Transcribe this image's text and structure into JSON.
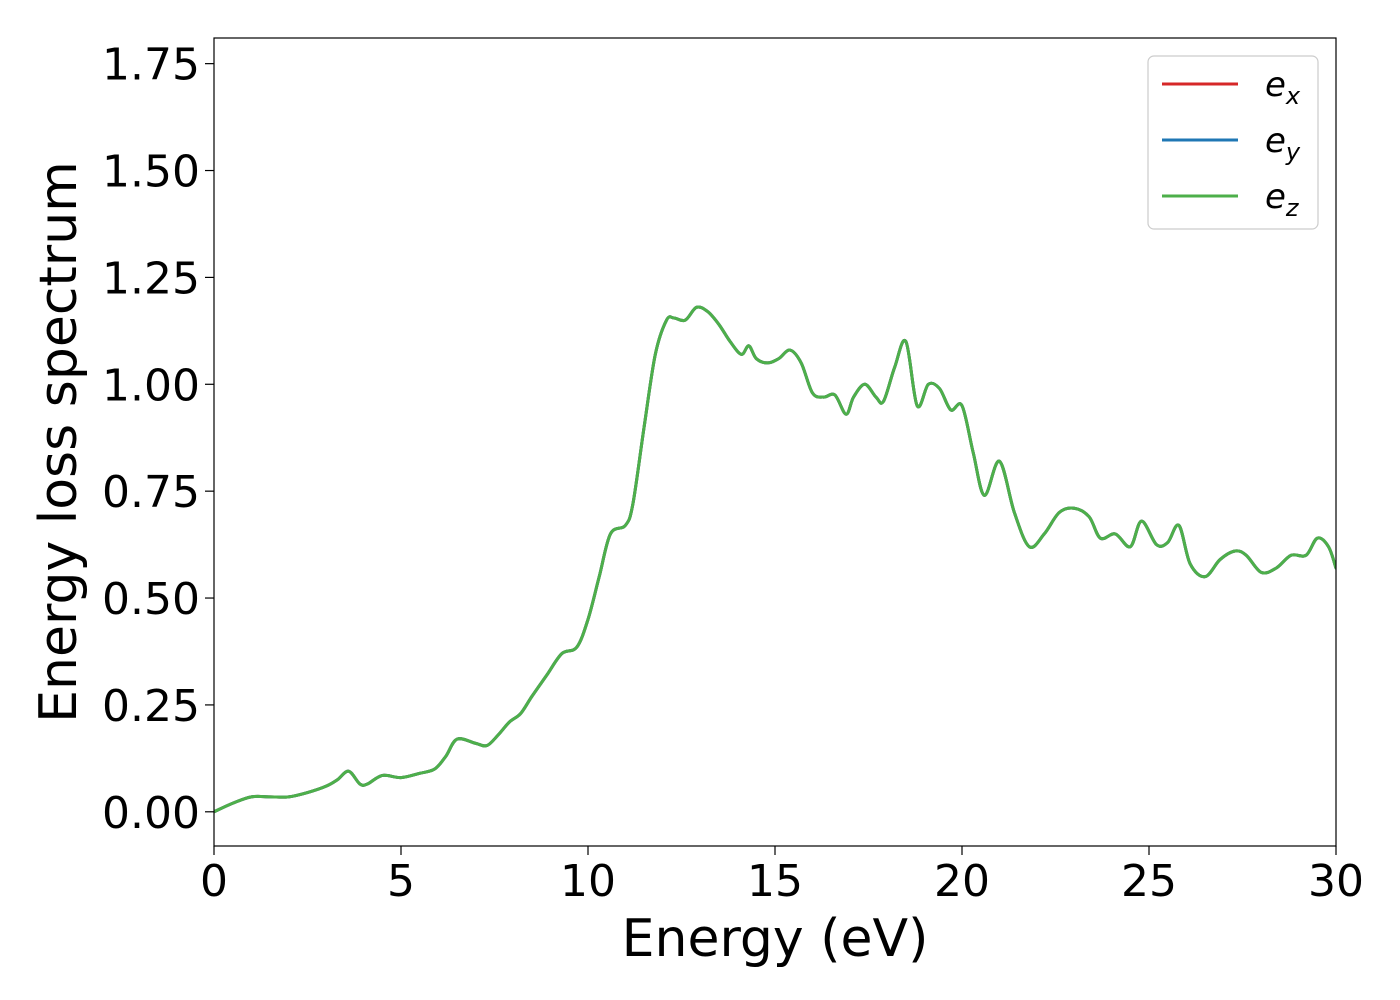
{
  "chart_data": {
    "type": "line",
    "title": "",
    "xlabel": "Energy (eV)",
    "ylabel": "Energy loss spectrum",
    "xlim": [
      0,
      30
    ],
    "ylim": [
      -0.08,
      1.81
    ],
    "xticks": [
      0,
      5,
      10,
      15,
      20,
      25,
      30
    ],
    "xtick_labels": [
      "0",
      "5",
      "10",
      "15",
      "20",
      "25",
      "30"
    ],
    "yticks": [
      0,
      0.25,
      0.5,
      0.75,
      1.0,
      1.25,
      1.5,
      1.75
    ],
    "ytick_labels": [
      "0.00",
      "0.25",
      "0.50",
      "0.75",
      "1.00",
      "1.25",
      "1.50",
      "1.75"
    ],
    "grid": false,
    "legend_position": "top-right",
    "series": [
      {
        "name": "e_x",
        "label_base": "e",
        "label_sub": "x",
        "color": "#d62728",
        "x": [
          0,
          0.5,
          1,
          1.5,
          2,
          2.5,
          3,
          3.3,
          3.6,
          3.9,
          4.1,
          4.5,
          5,
          5.5,
          5.9,
          6.2,
          6.5,
          7,
          7.3,
          7.6,
          7.9,
          8.2,
          8.5,
          8.9,
          9.3,
          9.7,
          10,
          10.3,
          10.6,
          11,
          11.2,
          11.5,
          11.8,
          12.1,
          12.3,
          12.6,
          12.9,
          13.2,
          13.5,
          13.8,
          14.1,
          14.3,
          14.5,
          14.8,
          15.1,
          15.4,
          15.7,
          16,
          16.3,
          16.6,
          16.9,
          17.1,
          17.4,
          17.7,
          17.9,
          18.2,
          18.5,
          18.8,
          19.1,
          19.4,
          19.7,
          20,
          20.3,
          20.6,
          21,
          21.4,
          21.8,
          22.2,
          22.6,
          23,
          23.4,
          23.7,
          24.1,
          24.5,
          24.8,
          25.2,
          25.5,
          25.8,
          26.1,
          26.5,
          26.9,
          27.3,
          27.6,
          28,
          28.4,
          28.8,
          29.2,
          29.5,
          29.8,
          30
        ],
        "y": [
          0.0,
          0.02,
          0.035,
          0.035,
          0.035,
          0.045,
          0.06,
          0.075,
          0.095,
          0.065,
          0.065,
          0.085,
          0.08,
          0.09,
          0.1,
          0.13,
          0.17,
          0.16,
          0.155,
          0.18,
          0.21,
          0.23,
          0.27,
          0.32,
          0.37,
          0.385,
          0.45,
          0.55,
          0.65,
          0.67,
          0.72,
          0.9,
          1.07,
          1.15,
          1.155,
          1.15,
          1.18,
          1.17,
          1.14,
          1.1,
          1.07,
          1.09,
          1.06,
          1.05,
          1.06,
          1.08,
          1.05,
          0.98,
          0.97,
          0.975,
          0.93,
          0.97,
          1.0,
          0.97,
          0.96,
          1.04,
          1.1,
          0.95,
          1.0,
          0.99,
          0.94,
          0.95,
          0.84,
          0.74,
          0.82,
          0.7,
          0.62,
          0.65,
          0.7,
          0.71,
          0.69,
          0.64,
          0.65,
          0.62,
          0.68,
          0.625,
          0.63,
          0.67,
          0.58,
          0.55,
          0.59,
          0.61,
          0.6,
          0.56,
          0.57,
          0.6,
          0.6,
          0.64,
          0.62,
          0.57
        ]
      },
      {
        "name": "e_y",
        "label_base": "e",
        "label_sub": "y",
        "color": "#1f77b4",
        "x": [
          0,
          0.5,
          1,
          1.5,
          2,
          2.5,
          3,
          3.3,
          3.6,
          3.9,
          4.1,
          4.5,
          5,
          5.5,
          5.9,
          6.2,
          6.5,
          7,
          7.3,
          7.6,
          7.9,
          8.2,
          8.5,
          8.9,
          9.3,
          9.7,
          10,
          10.3,
          10.6,
          11,
          11.2,
          11.5,
          11.8,
          12.1,
          12.3,
          12.6,
          12.9,
          13.2,
          13.5,
          13.8,
          14.1,
          14.3,
          14.5,
          14.8,
          15.1,
          15.4,
          15.7,
          16,
          16.3,
          16.6,
          16.9,
          17.1,
          17.4,
          17.7,
          17.9,
          18.2,
          18.5,
          18.8,
          19.1,
          19.4,
          19.7,
          20,
          20.3,
          20.6,
          21,
          21.4,
          21.8,
          22.2,
          22.6,
          23,
          23.4,
          23.7,
          24.1,
          24.5,
          24.8,
          25.2,
          25.5,
          25.8,
          26.1,
          26.5,
          26.9,
          27.3,
          27.6,
          28,
          28.4,
          28.8,
          29.2,
          29.5,
          29.8,
          30
        ],
        "y": [
          0.0,
          0.02,
          0.035,
          0.035,
          0.035,
          0.045,
          0.06,
          0.075,
          0.095,
          0.065,
          0.065,
          0.085,
          0.08,
          0.09,
          0.1,
          0.13,
          0.17,
          0.16,
          0.155,
          0.18,
          0.21,
          0.23,
          0.27,
          0.32,
          0.37,
          0.385,
          0.45,
          0.55,
          0.65,
          0.67,
          0.72,
          0.9,
          1.07,
          1.15,
          1.155,
          1.15,
          1.18,
          1.17,
          1.14,
          1.1,
          1.07,
          1.09,
          1.06,
          1.05,
          1.06,
          1.08,
          1.05,
          0.98,
          0.97,
          0.975,
          0.93,
          0.97,
          1.0,
          0.97,
          0.96,
          1.04,
          1.1,
          0.95,
          1.0,
          0.99,
          0.94,
          0.95,
          0.84,
          0.74,
          0.82,
          0.7,
          0.62,
          0.65,
          0.7,
          0.71,
          0.69,
          0.64,
          0.65,
          0.62,
          0.68,
          0.625,
          0.63,
          0.67,
          0.58,
          0.55,
          0.59,
          0.61,
          0.6,
          0.56,
          0.57,
          0.6,
          0.6,
          0.64,
          0.62,
          0.57
        ]
      },
      {
        "name": "e_z",
        "label_base": "e",
        "label_sub": "z",
        "color": "#4daf4a",
        "x": [
          0,
          0.5,
          1,
          1.5,
          2,
          2.5,
          3,
          3.3,
          3.6,
          3.9,
          4.1,
          4.5,
          5,
          5.5,
          5.9,
          6.2,
          6.5,
          7,
          7.3,
          7.6,
          7.9,
          8.2,
          8.5,
          8.9,
          9.3,
          9.7,
          10,
          10.3,
          10.6,
          11,
          11.2,
          11.5,
          11.8,
          12.1,
          12.3,
          12.6,
          12.9,
          13.2,
          13.5,
          13.8,
          14.1,
          14.3,
          14.5,
          14.8,
          15.1,
          15.4,
          15.7,
          16,
          16.3,
          16.6,
          16.9,
          17.1,
          17.4,
          17.7,
          17.9,
          18.2,
          18.5,
          18.8,
          19.1,
          19.4,
          19.7,
          20,
          20.3,
          20.6,
          21,
          21.4,
          21.8,
          22.2,
          22.6,
          23,
          23.4,
          23.7,
          24.1,
          24.5,
          24.8,
          25.2,
          25.5,
          25.8,
          26.1,
          26.5,
          26.9,
          27.3,
          27.6,
          28,
          28.4,
          28.8,
          29.2,
          29.5,
          29.8,
          30
        ],
        "y": [
          0.0,
          0.02,
          0.035,
          0.035,
          0.035,
          0.045,
          0.06,
          0.075,
          0.095,
          0.065,
          0.065,
          0.085,
          0.08,
          0.09,
          0.1,
          0.13,
          0.17,
          0.16,
          0.155,
          0.18,
          0.21,
          0.23,
          0.27,
          0.32,
          0.37,
          0.385,
          0.45,
          0.55,
          0.65,
          0.67,
          0.72,
          0.9,
          1.07,
          1.15,
          1.155,
          1.15,
          1.18,
          1.17,
          1.14,
          1.1,
          1.07,
          1.09,
          1.06,
          1.05,
          1.06,
          1.08,
          1.05,
          0.98,
          0.97,
          0.975,
          0.93,
          0.97,
          1.0,
          0.97,
          0.96,
          1.04,
          1.1,
          0.95,
          1.0,
          0.99,
          0.94,
          0.95,
          0.84,
          0.74,
          0.82,
          0.7,
          0.62,
          0.65,
          0.7,
          0.71,
          0.69,
          0.64,
          0.65,
          0.62,
          0.68,
          0.625,
          0.63,
          0.67,
          0.58,
          0.55,
          0.59,
          0.61,
          0.6,
          0.56,
          0.57,
          0.6,
          0.6,
          0.64,
          0.62,
          0.57
        ]
      }
    ]
  }
}
